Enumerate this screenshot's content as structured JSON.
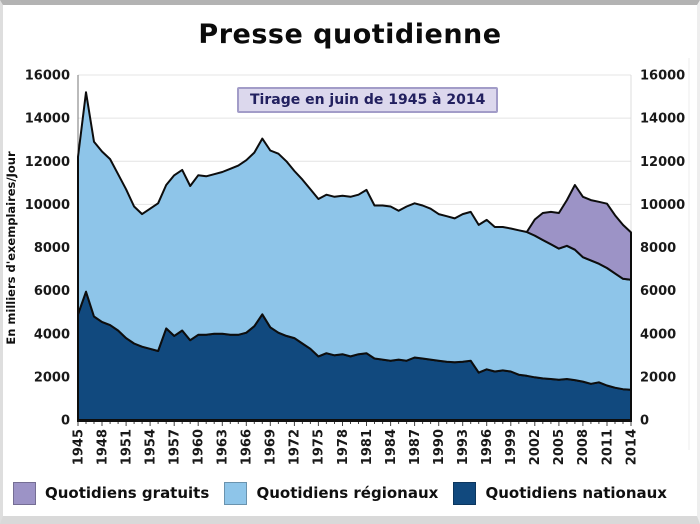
{
  "header": {
    "title": "Presse quotidienne"
  },
  "chart": {
    "subtitle": "Tirage en juin de 1945 à 2014",
    "y_axis_title": "En milliers d'exemplaires/Jour"
  },
  "legend": {
    "items": [
      {
        "label": "Quotidiens gratuits",
        "color": "#9c93c6"
      },
      {
        "label": "Quotidiens régionaux",
        "color": "#8ec5e9"
      },
      {
        "label": "Quotidiens nationaux",
        "color": "#11497e"
      }
    ]
  },
  "chart_data": {
    "type": "area",
    "stacked": true,
    "title": "Presse quotidienne",
    "subtitle": "Tirage en juin de 1945 à 2014",
    "xlabel": "",
    "ylabel": "En milliers d'exemplaires/Jour",
    "ylim": [
      0,
      16000
    ],
    "y_ticks": [
      0,
      2000,
      4000,
      6000,
      8000,
      10000,
      12000,
      14000,
      16000
    ],
    "x_tick_labels": [
      "1945",
      "1948",
      "1951",
      "1954",
      "1957",
      "1960",
      "1963",
      "1966",
      "1969",
      "1972",
      "1975",
      "1978",
      "1981",
      "1984",
      "1987",
      "1990",
      "1993",
      "1996",
      "1999",
      "2002",
      "2005",
      "2008",
      "2011",
      "2014"
    ],
    "grid": true,
    "legend_position": "bottom",
    "outline_color": "#0d0d0d",
    "years": [
      1945,
      1946,
      1947,
      1948,
      1949,
      1950,
      1951,
      1952,
      1953,
      1954,
      1955,
      1956,
      1957,
      1958,
      1959,
      1960,
      1961,
      1962,
      1963,
      1964,
      1965,
      1966,
      1967,
      1968,
      1969,
      1970,
      1971,
      1972,
      1973,
      1974,
      1975,
      1976,
      1977,
      1978,
      1979,
      1980,
      1981,
      1982,
      1983,
      1984,
      1985,
      1986,
      1987,
      1988,
      1989,
      1990,
      1991,
      1992,
      1993,
      1994,
      1995,
      1996,
      1997,
      1998,
      1999,
      2000,
      2001,
      2002,
      2003,
      2004,
      2005,
      2006,
      2007,
      2008,
      2009,
      2010,
      2011,
      2012,
      2013,
      2014
    ],
    "series": [
      {
        "name": "Quotidiens nationaux",
        "color": "#11497e",
        "values": [
          4900,
          5950,
          4800,
          4550,
          4400,
          4150,
          3800,
          3550,
          3400,
          3300,
          3200,
          4250,
          3900,
          4150,
          3700,
          3950,
          3950,
          4000,
          4000,
          3950,
          3950,
          4050,
          4350,
          4900,
          4300,
          4050,
          3900,
          3800,
          3550,
          3300,
          2950,
          3100,
          3000,
          3050,
          2950,
          3050,
          3100,
          2850,
          2800,
          2750,
          2800,
          2750,
          2900,
          2850,
          2800,
          2750,
          2700,
          2680,
          2700,
          2750,
          2200,
          2350,
          2250,
          2300,
          2250,
          2100,
          2050,
          1980,
          1930,
          1900,
          1870,
          1900,
          1850,
          1780,
          1680,
          1750,
          1600,
          1500,
          1430,
          1400
        ]
      },
      {
        "name": "Quotidiens régionaux",
        "color": "#8ec5e9",
        "values": [
          7300,
          9250,
          8100,
          7900,
          7700,
          7250,
          6900,
          6350,
          6150,
          6500,
          6850,
          6650,
          7450,
          7450,
          7150,
          7400,
          7350,
          7400,
          7500,
          7700,
          7850,
          8000,
          8050,
          8150,
          8200,
          8300,
          8100,
          7750,
          7600,
          7400,
          7300,
          7350,
          7350,
          7350,
          7400,
          7400,
          7570,
          7100,
          7150,
          7150,
          6900,
          7150,
          7150,
          7100,
          7000,
          6800,
          6750,
          6670,
          6850,
          6900,
          6850,
          6930,
          6700,
          6650,
          6630,
          6700,
          6670,
          6570,
          6420,
          6250,
          6080,
          6180,
          6050,
          5770,
          5720,
          5500,
          5450,
          5300,
          5120,
          5100
        ]
      },
      {
        "name": "Quotidiens gratuits",
        "color": "#9c93c6",
        "values": [
          0,
          0,
          0,
          0,
          0,
          0,
          0,
          0,
          0,
          0,
          0,
          0,
          0,
          0,
          0,
          0,
          0,
          0,
          0,
          0,
          0,
          0,
          0,
          0,
          0,
          0,
          0,
          0,
          0,
          0,
          0,
          0,
          0,
          0,
          0,
          0,
          0,
          0,
          0,
          0,
          0,
          0,
          0,
          0,
          0,
          0,
          0,
          0,
          0,
          0,
          0,
          0,
          0,
          0,
          0,
          0,
          0,
          750,
          1250,
          1500,
          1650,
          2120,
          3000,
          2800,
          2800,
          2870,
          2980,
          2700,
          2500,
          2200
        ]
      }
    ]
  }
}
